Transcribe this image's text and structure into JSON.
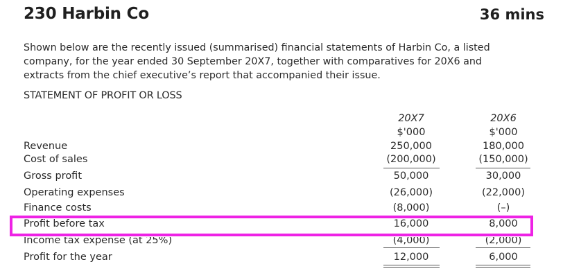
{
  "header": {
    "title": "230 Harbin Co",
    "duration": "36 mins"
  },
  "intro": {
    "lines": [
      "Shown below are the recently issued (summarised) financial statements of Harbin Co, a listed",
      "company, for the year ended 30 September 20X7, together with comparatives for 20X6 and",
      "extracts from the chief executive’s report that accompanied their issue."
    ]
  },
  "statement": {
    "heading": "STATEMENT OF PROFIT OR LOSS",
    "columns": [
      {
        "year": "20X7",
        "unit": "$'000"
      },
      {
        "year": "20X6",
        "unit": "$'000"
      }
    ],
    "rows": [
      {
        "label": "Revenue",
        "values": [
          "250,000",
          "180,000"
        ]
      },
      {
        "label": "Cost of sales",
        "values": [
          "(200,000)",
          "(150,000)"
        ]
      },
      {
        "label": "Gross profit",
        "values": [
          "50,000",
          "30,000"
        ]
      },
      {
        "label": "Operating expenses",
        "values": [
          "(26,000)",
          "(22,000)"
        ]
      },
      {
        "label": "Finance costs",
        "values": [
          "(8,000)",
          "(–)"
        ]
      },
      {
        "label": "Profit before tax",
        "values": [
          "16,000",
          "8,000"
        ]
      },
      {
        "label": "Income tax expense (at 25%)",
        "values": [
          "(4,000)",
          "(2,000)"
        ]
      },
      {
        "label": "Profit for the year",
        "values": [
          "12,000",
          "6,000"
        ]
      }
    ]
  },
  "colors": {
    "highlight": "#ee22e5"
  }
}
